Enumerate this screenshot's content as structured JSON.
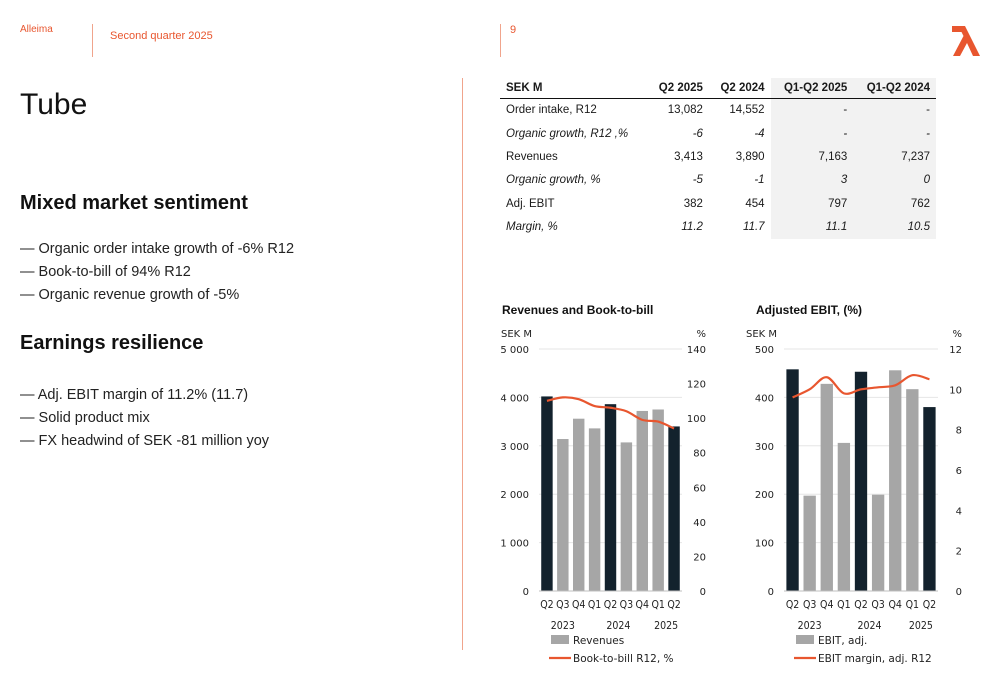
{
  "header": {
    "brand": "Alleima",
    "period": "Second quarter 2025",
    "page_number": "9"
  },
  "colors": {
    "accent": "#e8562f",
    "dark_bar": "#13222d",
    "grey_bar": "#a6a6a6",
    "line": "#e8562f"
  },
  "title": "Tube",
  "sections": [
    {
      "heading": "Mixed market sentiment",
      "bullets": [
        "Organic order intake growth of -6% R12",
        "Book-to-bill of 94% R12",
        "Organic revenue growth of -5%"
      ]
    },
    {
      "heading": "Earnings resilience",
      "bullets": [
        "Adj. EBIT margin of 11.2% (11.7)",
        "Solid product mix",
        "FX headwind of SEK -81 million yoy"
      ]
    }
  ],
  "table": {
    "headers": [
      "SEK M",
      "Q2 2025",
      "Q2 2024",
      "Q1-Q2 2025",
      "Q1-Q2 2024"
    ],
    "rows": [
      {
        "italic": false,
        "cells": [
          "Order intake, R12",
          "13,082",
          "14,552",
          "-",
          "-"
        ]
      },
      {
        "italic": true,
        "cells": [
          "Organic growth, R12 ,%",
          "-6",
          "-4",
          "-",
          "-"
        ]
      },
      {
        "italic": false,
        "cells": [
          "Revenues",
          "3,413",
          "3,890",
          "7,163",
          "7,237"
        ]
      },
      {
        "italic": true,
        "cells": [
          "Organic growth, %",
          "-5",
          "-1",
          "3",
          "0"
        ]
      },
      {
        "italic": false,
        "cells": [
          "Adj. EBIT",
          "382",
          "454",
          "797",
          "762"
        ]
      },
      {
        "italic": true,
        "cells": [
          "Margin, %",
          "11.2",
          "11.7",
          "11.1",
          "10.5"
        ]
      }
    ]
  },
  "chart_data": [
    {
      "type": "bar",
      "title": "Revenues and Book-to-bill",
      "y_left_label": "SEK M",
      "y_right_label": "%",
      "y_left_ticks": [
        "0",
        "1 000",
        "2 000",
        "3 000",
        "4 000",
        "5 000"
      ],
      "y_right_ticks": [
        "0",
        "20",
        "40",
        "60",
        "80",
        "100",
        "120",
        "140"
      ],
      "ylim_left": [
        0,
        5000
      ],
      "ylim_right": [
        0,
        140
      ],
      "categories": [
        "Q2",
        "Q3",
        "Q4",
        "Q1",
        "Q2",
        "Q3",
        "Q4",
        "Q1",
        "Q2"
      ],
      "year_labels": [
        {
          "label": "2023",
          "at": 1
        },
        {
          "label": "2024",
          "at": 4.5
        },
        {
          "label": "2025",
          "at": 7.5
        }
      ],
      "bar_highlight": [
        true,
        false,
        false,
        false,
        true,
        false,
        false,
        false,
        true
      ],
      "series": [
        {
          "name": "Revenues",
          "kind": "bar",
          "values": [
            4020,
            3140,
            3560,
            3360,
            3860,
            3070,
            3720,
            3750,
            3400
          ]
        },
        {
          "name": "Book-to-bill R12, %",
          "kind": "line",
          "axis": "right",
          "values": [
            110,
            112,
            111,
            107,
            106,
            104,
            99,
            98,
            94
          ]
        }
      ]
    },
    {
      "type": "bar",
      "title": "Adjusted EBIT, (%)",
      "y_left_label": "SEK M",
      "y_right_label": "%",
      "y_left_ticks": [
        "0",
        "100",
        "200",
        "300",
        "400",
        "500"
      ],
      "y_right_ticks": [
        "0",
        "2",
        "4",
        "6",
        "8",
        "10",
        "12"
      ],
      "ylim_left": [
        0,
        500
      ],
      "ylim_right": [
        0,
        12
      ],
      "categories": [
        "Q2",
        "Q3",
        "Q4",
        "Q1",
        "Q2",
        "Q3",
        "Q4",
        "Q1",
        "Q2"
      ],
      "year_labels": [
        {
          "label": "2023",
          "at": 1
        },
        {
          "label": "2024",
          "at": 4.5
        },
        {
          "label": "2025",
          "at": 7.5
        }
      ],
      "bar_highlight": [
        true,
        false,
        false,
        false,
        true,
        false,
        false,
        false,
        true
      ],
      "series": [
        {
          "name": "EBIT, adj.",
          "kind": "bar",
          "values": [
            458,
            197,
            428,
            306,
            453,
            199,
            456,
            417,
            380
          ]
        },
        {
          "name": "EBIT margin, adj. R12",
          "kind": "line",
          "axis": "right",
          "values": [
            9.6,
            10.0,
            10.6,
            9.8,
            10.0,
            10.1,
            10.2,
            10.7,
            10.5
          ]
        }
      ]
    }
  ]
}
